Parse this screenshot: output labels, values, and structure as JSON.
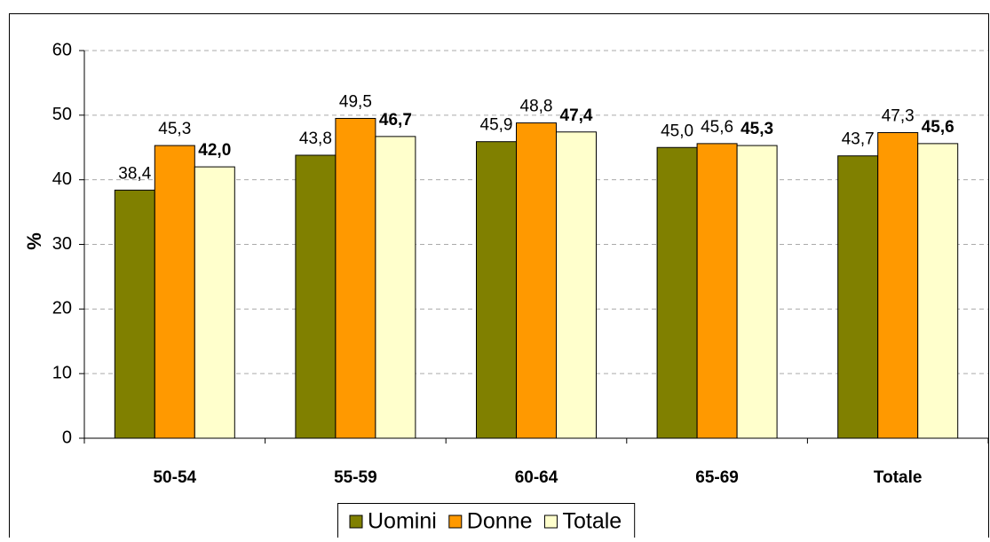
{
  "chart_data": {
    "type": "bar",
    "y_label": "%",
    "categories": [
      "50-54",
      "55-59",
      "60-64",
      "65-69",
      "Totale"
    ],
    "series": [
      {
        "name": "Uomini",
        "color": "#808000",
        "values": [
          38.4,
          43.8,
          45.9,
          45.0,
          43.7
        ],
        "value_labels": [
          "38,4",
          "43,8",
          "45,9",
          "45,0",
          "43,7"
        ]
      },
      {
        "name": "Donne",
        "color": "#ff9900",
        "values": [
          45.3,
          49.5,
          48.8,
          45.6,
          47.3
        ],
        "value_labels": [
          "45,3",
          "49,5",
          "48,8",
          "45,6",
          "47,3"
        ]
      },
      {
        "name": "Totale",
        "color": "#ffffcc",
        "values": [
          42.0,
          46.7,
          47.4,
          45.3,
          45.6
        ],
        "value_labels": [
          "42,0",
          "46,7",
          "47,4",
          "45,3",
          "45,6"
        ]
      }
    ],
    "ylim": [
      0,
      60
    ],
    "yticks": [
      0,
      10,
      20,
      30,
      40,
      50,
      60
    ],
    "grid": true,
    "legend": "bottom"
  }
}
